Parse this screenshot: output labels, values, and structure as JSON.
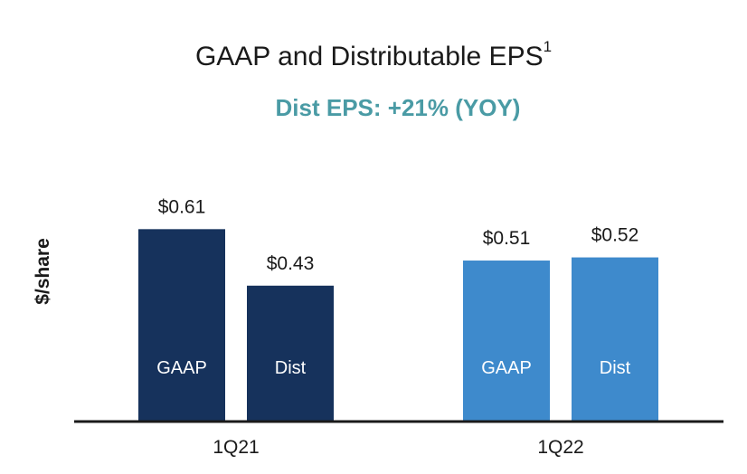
{
  "chart_data": {
    "type": "bar",
    "title": "GAAP and Distributable EPS",
    "title_superscript": "1",
    "subtitle": "Dist EPS: +21% (YOY)",
    "ylabel": "$/share",
    "xlabel": "",
    "categories": [
      "1Q21",
      "1Q22"
    ],
    "series": [
      {
        "name": "GAAP",
        "values": [
          0.61,
          0.51
        ],
        "value_labels": [
          "$0.61",
          "$0.51"
        ]
      },
      {
        "name": "Dist",
        "values": [
          0.43,
          0.52
        ],
        "value_labels": [
          "$0.43",
          "$0.52"
        ]
      }
    ],
    "ylim": [
      0,
      0.8
    ],
    "grid": false,
    "legend": "none",
    "colors": {
      "1Q21": "#16325c",
      "1Q22": "#3e8acc",
      "subtitle": "#4a9ba5",
      "axis": "#1a1a1a"
    }
  }
}
